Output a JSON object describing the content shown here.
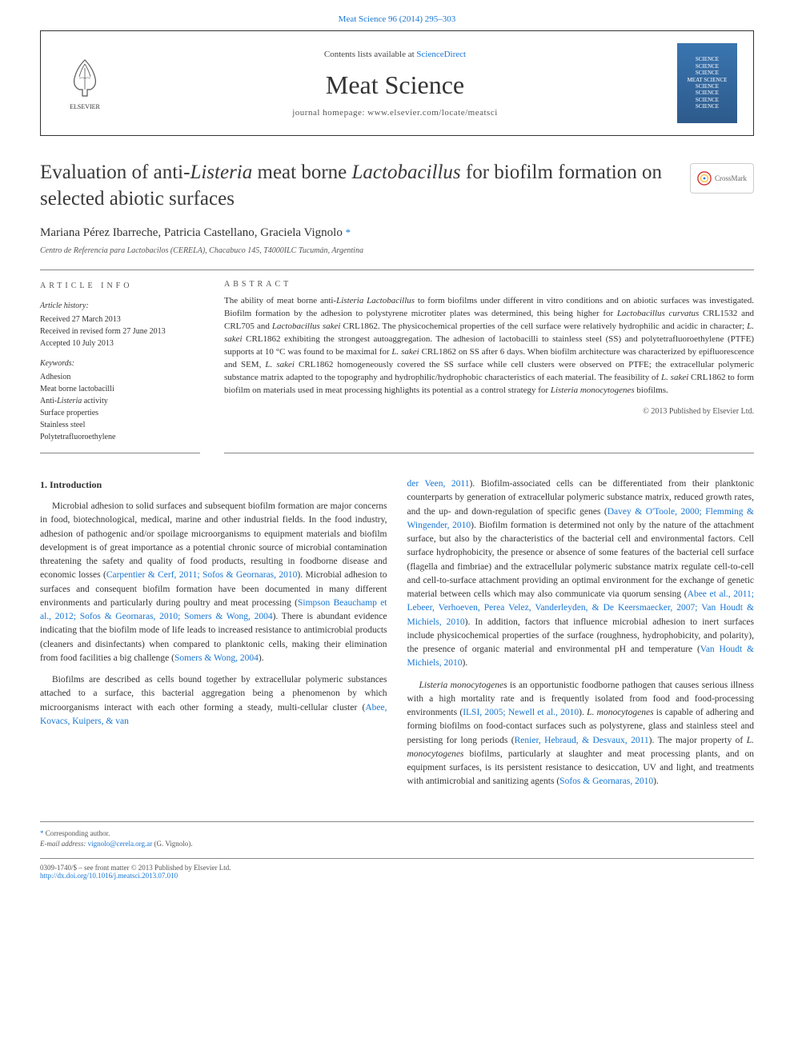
{
  "top_link": "Meat Science 96 (2014) 295–303",
  "header": {
    "contents_text": "Contents lists available at ",
    "contents_link": "ScienceDirect",
    "journal_name": "Meat Science",
    "homepage_label": "journal homepage: ",
    "homepage_url": "www.elsevier.com/locate/meatsci",
    "publisher": "ELSEVIER",
    "cover_lines": [
      "SCIENCE",
      "SCIENCE",
      "SCIENCE",
      "MEAT SCIENCE",
      "SCIENCE",
      "SCIENCE",
      "SCIENCE",
      "SCIENCE"
    ]
  },
  "article": {
    "title_html": "Evaluation of anti-<em>Listeria</em> meat borne <em>Lactobacillus</em> for biofilm formation on selected abiotic surfaces",
    "crossmark_label": "CrossMark",
    "authors": "Mariana Pérez Ibarreche, Patricia Castellano, Graciela Vignolo",
    "corr_star": "*",
    "affiliation": "Centro de Referencia para Lactobacilos (CERELA), Chacabuco 145, T4000ILC Tucumán, Argentina"
  },
  "info": {
    "heading": "article info",
    "history_label": "Article history:",
    "history": [
      "Received 27 March 2013",
      "Received in revised form 27 June 2013",
      "Accepted 10 July 2013"
    ],
    "keywords_label": "Keywords:",
    "keywords": [
      "Adhesion",
      "Meat borne lactobacilli",
      "Anti-Listeria activity",
      "Surface properties",
      "Stainless steel",
      "Polytetrafluoroethylene"
    ]
  },
  "abstract": {
    "heading": "abstract",
    "text_html": "The ability of meat borne anti-<em>Listeria Lactobacillus</em> to form biofilms under different in vitro conditions and on abiotic surfaces was investigated. Biofilm formation by the adhesion to polystyrene microtiter plates was determined, this being higher for <em>Lactobacillus curvatus</em> CRL1532 and CRL705 and <em>Lactobacillus sakei</em> CRL1862. The physicochemical properties of the cell surface were relatively hydrophilic and acidic in character; <em>L. sakei</em> CRL1862 exhibiting the strongest autoaggregation. The adhesion of lactobacilli to stainless steel (SS) and polytetrafluoroethylene (PTFE) supports at 10 °C was found to be maximal for <em>L. sakei</em> CRL1862 on SS after 6 days. When biofilm architecture was characterized by epifluorescence and SEM, <em>L. sakei</em> CRL1862 homogeneously covered the SS surface while cell clusters were observed on PTFE; the extracellular polymeric substance matrix adapted to the topography and hydrophilic/hydrophobic characteristics of each material. The feasibility of <em>L. sakei</em> CRL1862 to form biofilm on materials used in meat processing highlights its potential as a control strategy for <em>Listeria monocytogenes</em> biofilms.",
    "copyright": "© 2013 Published by Elsevier Ltd."
  },
  "body": {
    "section1_heading": "1. Introduction",
    "p1_html": "Microbial adhesion to solid surfaces and subsequent biofilm formation are major concerns in food, biotechnological, medical, marine and other industrial fields. In the food industry, adhesion of pathogenic and/or spoilage microorganisms to equipment materials and biofilm development is of great importance as a potential chronic source of microbial contamination threatening the safety and quality of food products, resulting in foodborne disease and economic losses (<span class=\"cite\">Carpentier & Cerf, 2011; Sofos & Geornaras, 2010</span>). Microbial adhesion to surfaces and consequent biofilm formation have been documented in many different environments and particularly during poultry and meat processing (<span class=\"cite\">Simpson Beauchamp et al., 2012; Sofos & Geornaras, 2010; Somers & Wong, 2004</span>). There is abundant evidence indicating that the biofilm mode of life leads to increased resistance to antimicrobial products (cleaners and disinfectants) when compared to planktonic cells, making their elimination from food facilities a big challenge (<span class=\"cite\">Somers & Wong, 2004</span>).",
    "p2_html": "Biofilms are described as cells bound together by extracellular polymeric substances attached to a surface, this bacterial aggregation being a phenomenon by which microorganisms interact with each other forming a steady, multi-cellular cluster (<span class=\"cite\">Abee, Kovacs, Kuipers, & van </span>",
    "p3_html": "<span class=\"cite\">der Veen, 2011</span>). Biofilm-associated cells can be differentiated from their planktonic counterparts by generation of extracellular polymeric substance matrix, reduced growth rates, and the up- and down-regulation of specific genes (<span class=\"cite\">Davey & O'Toole, 2000; Flemming & Wingender, 2010</span>). Biofilm formation is determined not only by the nature of the attachment surface, but also by the characteristics of the bacterial cell and environmental factors. Cell surface hydrophobicity, the presence or absence of some features of the bacterial cell surface (flagella and fimbriae) and the extracellular polymeric substance matrix regulate cell-to-cell and cell-to-surface attachment providing an optimal environment for the exchange of genetic material between cells which may also communicate via quorum sensing (<span class=\"cite\">Abee et al., 2011; Lebeer, Verhoeven, Perea Velez, Vanderleyden, & De Keersmaecker, 2007; Van Houdt & Michiels, 2010</span>). In addition, factors that influence microbial adhesion to inert surfaces include physicochemical properties of the surface (roughness, hydrophobicity, and polarity), the presence of organic material and environmental pH and temperature (<span class=\"cite\">Van Houdt & Michiels, 2010</span>).",
    "p4_html": "<em>Listeria monocytogenes</em> is an opportunistic foodborne pathogen that causes serious illness with a high mortality rate and is frequently isolated from food and food-processing environments (<span class=\"cite\">ILSI, 2005; Newell et al., 2010</span>). <em>L. monocytogenes</em> is capable of adhering and forming biofilms on food-contact surfaces such as polystyrene, glass and stainless steel and persisting for long periods (<span class=\"cite\">Renier, Hebraud, & Desvaux, 2011</span>). The major property of <em>L. monocytogenes</em> biofilms, particularly at slaughter and meat processing plants, and on equipment surfaces, is its persistent resistance to desiccation, UV and light, and treatments with antimicrobial and sanitizing agents (<span class=\"cite\">Sofos & Geornaras, 2010</span>)."
  },
  "footer": {
    "corr_label": "Corresponding author.",
    "email_label": "E-mail address:",
    "email": "vignolo@cerela.org.ar",
    "email_name": "(G. Vignolo).",
    "issn_line": "0309-1740/$ – see front matter © 2013 Published by Elsevier Ltd.",
    "doi": "http://dx.doi.org/10.1016/j.meatsci.2013.07.010"
  },
  "colors": {
    "link": "#1976d2",
    "text": "#333333",
    "muted": "#555555",
    "border": "#888888",
    "cover_top": "#3a75b0",
    "cover_bottom": "#2d5a8c"
  }
}
